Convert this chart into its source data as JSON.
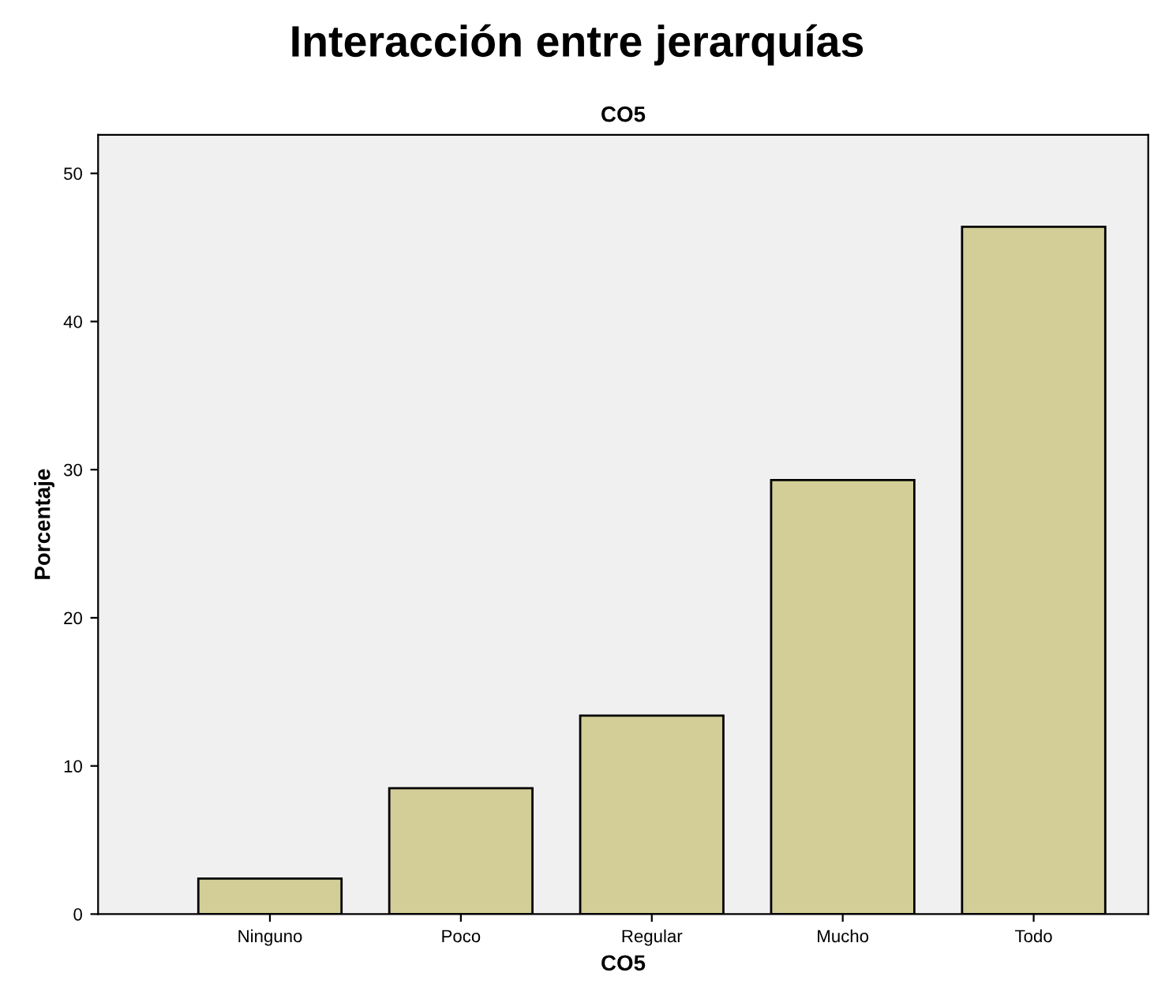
{
  "chart_data": {
    "type": "bar",
    "title": "Interacción entre jerarquías",
    "subtitle": "CO5",
    "xlabel": "CO5",
    "ylabel": "Porcentaje",
    "categories": [
      "Ninguno",
      "Poco",
      "Regular",
      "Mucho",
      "Todo"
    ],
    "values": [
      2.4,
      8.5,
      13.4,
      29.3,
      46.4
    ],
    "color": "#d3ce97",
    "ylim": [
      0,
      52.6
    ],
    "yticks": [
      0,
      10,
      20,
      30,
      40,
      50
    ],
    "grid": false
  }
}
